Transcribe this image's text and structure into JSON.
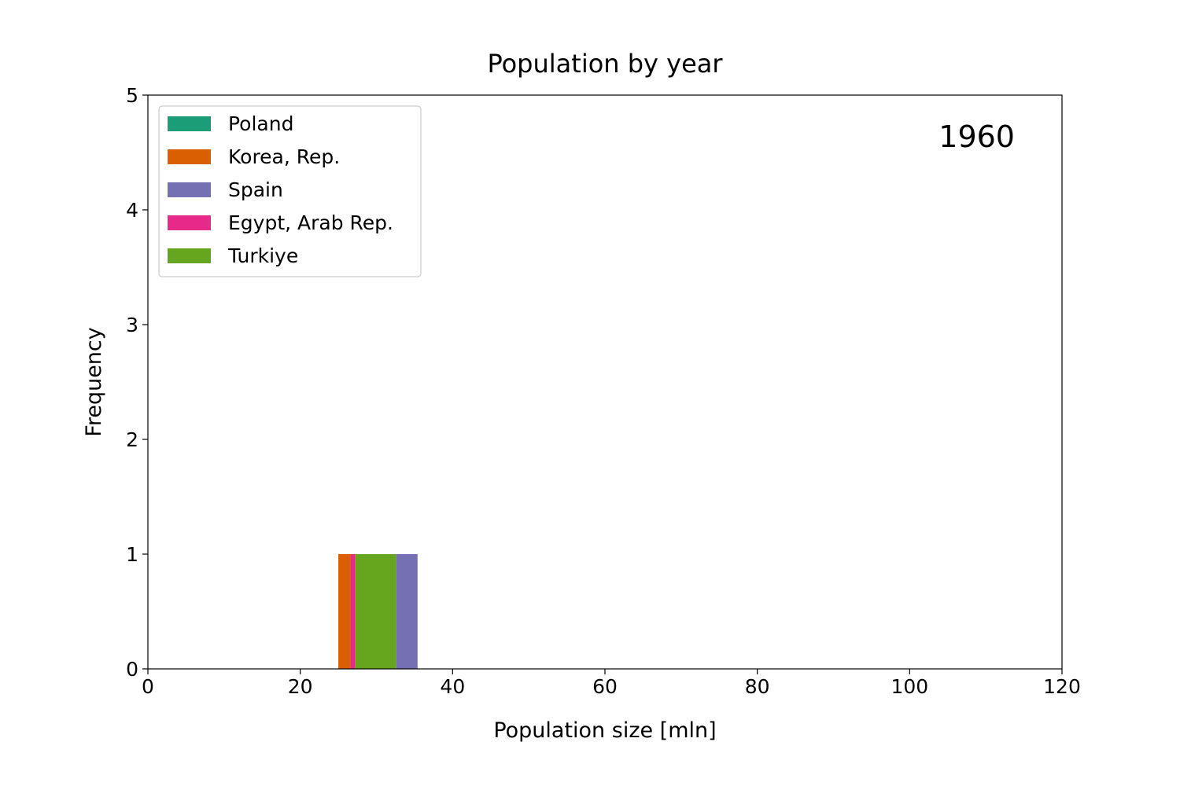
{
  "chart_data": {
    "type": "bar",
    "title": "Population by year",
    "xlabel": "Population size [mln]",
    "ylabel": "Frequency",
    "annotation": "1960",
    "xlim": [
      0,
      120
    ],
    "ylim": [
      0,
      5
    ],
    "xticks": [
      0,
      20,
      40,
      60,
      80,
      100,
      120
    ],
    "yticks": [
      0,
      1,
      2,
      3,
      4,
      5
    ],
    "grid": false,
    "legend_position": "top-left",
    "series": [
      {
        "name": "Poland",
        "color": "#1b9e77",
        "bins": [
          {
            "x0": 29.6,
            "x1": 29.6,
            "count": 0
          }
        ]
      },
      {
        "name": "Korea, Rep.",
        "color": "#d95f02",
        "bins": [
          {
            "x0": 25.0,
            "x1": 26.6,
            "count": 1
          }
        ]
      },
      {
        "name": "Spain",
        "color": "#7570b3",
        "bins": [
          {
            "x0": 32.6,
            "x1": 35.4,
            "count": 1
          }
        ]
      },
      {
        "name": "Egypt, Arab Rep.",
        "color": "#e7298a",
        "bins": [
          {
            "x0": 26.6,
            "x1": 27.2,
            "count": 1
          }
        ]
      },
      {
        "name": "Turkiye",
        "color": "#66a61e",
        "bins": [
          {
            "x0": 27.2,
            "x1": 32.6,
            "count": 1
          }
        ]
      }
    ]
  }
}
